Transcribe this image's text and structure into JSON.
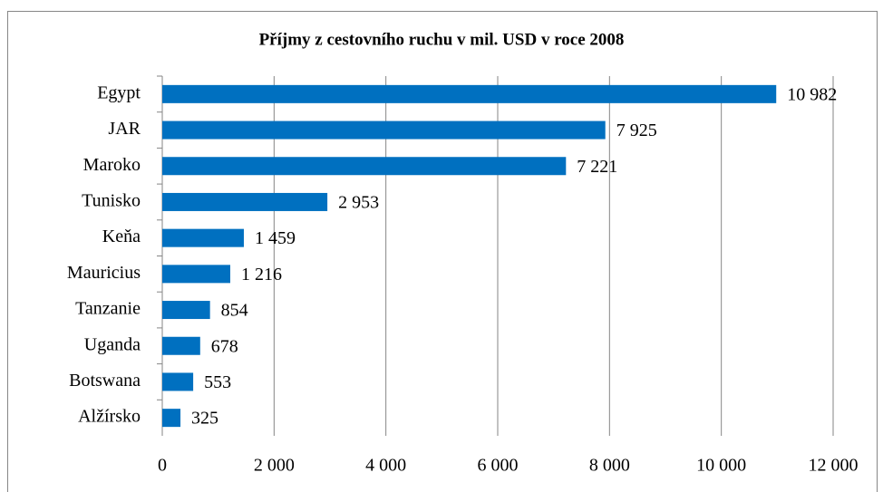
{
  "chart_data": {
    "type": "bar",
    "orientation": "horizontal",
    "title": "Příjmy z cestovního ruchu v mil. USD v roce 2008",
    "categories": [
      "Egypt",
      "JAR",
      "Maroko",
      "Tunisko",
      "Keňa",
      "Mauricius",
      "Tanzanie",
      "Uganda",
      "Botswana",
      "Alžírsko"
    ],
    "values": [
      10982,
      7925,
      7221,
      2953,
      1459,
      1216,
      854,
      678,
      553,
      325
    ],
    "value_labels": [
      "10 982",
      "7 925",
      "7 221",
      "2 953",
      "1 459",
      "1 216",
      "854",
      "678",
      "553",
      "325"
    ],
    "color": "#0070c0",
    "xlim": [
      0,
      12000
    ],
    "xticks": [
      0,
      {
        "value": 2000,
        "label": "2 000"
      },
      {
        "value": 4000,
        "label": "4 000"
      },
      {
        "value": 6000,
        "label": "6 000"
      },
      {
        "value": 8000,
        "label": "8 000"
      },
      {
        "value": 10000,
        "label": "10 000"
      },
      {
        "value": 12000,
        "label": "12 000"
      }
    ],
    "grid": true
  }
}
